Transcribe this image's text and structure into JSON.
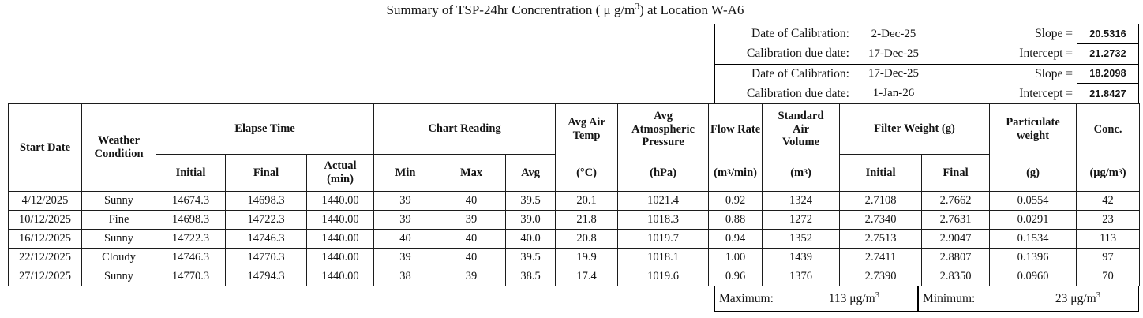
{
  "title": "Summary of TSP-24hr Concrentration ( μ g/m³) at Location W-A6",
  "calibration": {
    "rows": [
      {
        "label": "Date of Calibration:",
        "date": "2-Dec-25",
        "param": "Slope =",
        "value": "20.5316"
      },
      {
        "label": "Calibration due date:",
        "date": "17-Dec-25",
        "param": "Intercept =",
        "value": "21.2732"
      },
      {
        "label": "Date of Calibration:",
        "date": "17-Dec-25",
        "param": "Slope =",
        "value": "18.2098"
      },
      {
        "label": "Calibration due date:",
        "date": "1-Jan-26",
        "param": "Intercept =",
        "value": "21.8427"
      }
    ]
  },
  "table": {
    "headers": {
      "start_date": "Start Date",
      "weather": "Weather\nCondition",
      "elapse_time": "Elapse Time",
      "chart_reading": "Chart Reading",
      "et_initial": "Initial",
      "et_final": "Final",
      "et_actual": "Actual\n(min)",
      "cr_min": "Min",
      "cr_max": "Max",
      "cr_avg": "Avg",
      "avg_air_temp": {
        "label": "Avg Air\nTemp",
        "unit": "(°C)"
      },
      "avg_pressure": {
        "label": "Avg\nAtmospheric\nPressure",
        "unit": "(hPa)"
      },
      "flow_rate": {
        "label": "Flow Rate",
        "unit": "(m³/min)"
      },
      "std_air_volume": {
        "label": "Standard\nAir\nVolume",
        "unit": "(m³)"
      },
      "filter_weight": "Filter Weight (g)",
      "fw_initial": "Initial",
      "fw_final": "Final",
      "particulate": {
        "label": "Particulate\nweight",
        "unit": "(g)"
      },
      "conc": {
        "label": "Conc.",
        "unit": "(μg/m³)"
      }
    },
    "rows": [
      [
        "4/12/2025",
        "Sunny",
        "14674.3",
        "14698.3",
        "1440.00",
        "39",
        "40",
        "39.5",
        "20.1",
        "1021.4",
        "0.92",
        "1324",
        "2.7108",
        "2.7662",
        "0.0554",
        "42"
      ],
      [
        "10/12/2025",
        "Fine",
        "14698.3",
        "14722.3",
        "1440.00",
        "39",
        "39",
        "39.0",
        "21.8",
        "1018.3",
        "0.88",
        "1272",
        "2.7340",
        "2.7631",
        "0.0291",
        "23"
      ],
      [
        "16/12/2025",
        "Sunny",
        "14722.3",
        "14746.3",
        "1440.00",
        "40",
        "40",
        "40.0",
        "20.8",
        "1019.7",
        "0.94",
        "1352",
        "2.7513",
        "2.9047",
        "0.1534",
        "113"
      ],
      [
        "22/12/2025",
        "Cloudy",
        "14746.3",
        "14770.3",
        "1440.00",
        "39",
        "40",
        "39.5",
        "19.9",
        "1018.1",
        "1.00",
        "1439",
        "2.7411",
        "2.8807",
        "0.1396",
        "97"
      ],
      [
        "27/12/2025",
        "Sunny",
        "14770.3",
        "14794.3",
        "1440.00",
        "38",
        "39",
        "38.5",
        "17.4",
        "1019.6",
        "0.96",
        "1376",
        "2.7390",
        "2.8350",
        "0.0960",
        "70"
      ]
    ]
  },
  "summary": {
    "max_label": "Maximum:",
    "max_value": "113 μg/m³",
    "min_label": "Minimum:",
    "min_value": "23 μg/m³"
  }
}
